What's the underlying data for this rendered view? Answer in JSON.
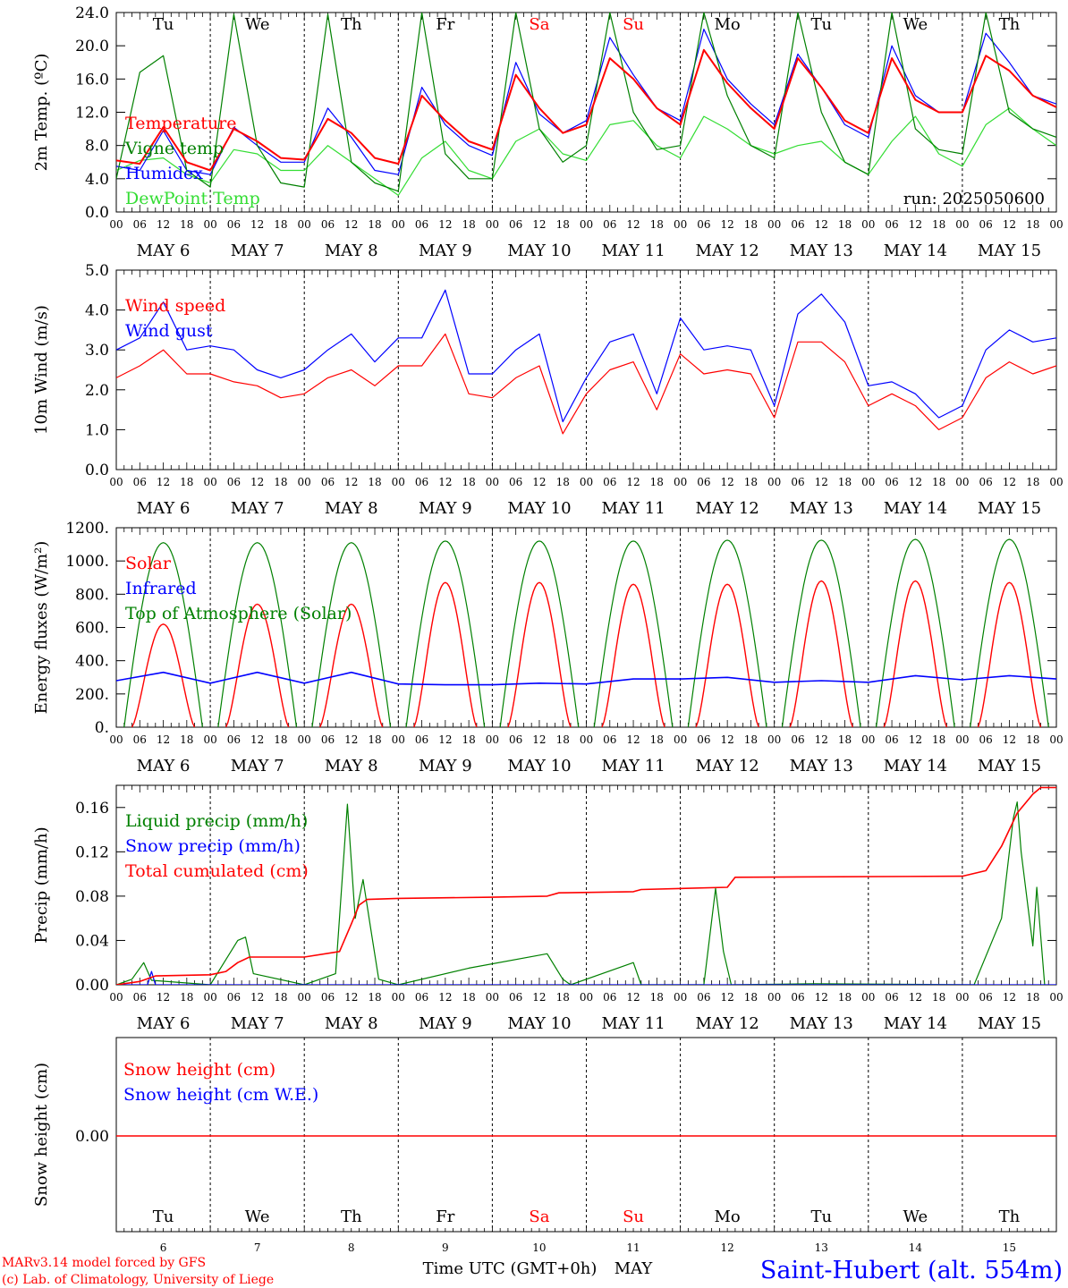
{
  "colors": {
    "red": "#ff0000",
    "green": "#008000",
    "blue": "#0000ff",
    "lightgreen": "#33dd33",
    "black": "#000000",
    "weekend": "#ff0000"
  },
  "days": [
    {
      "dow": "Tu",
      "date": "MAY  6",
      "num": "6",
      "weekend": false
    },
    {
      "dow": "We",
      "date": "MAY  7",
      "num": "7",
      "weekend": false
    },
    {
      "dow": "Th",
      "date": "MAY  8",
      "num": "8",
      "weekend": false
    },
    {
      "dow": "Fr",
      "date": "MAY  9",
      "num": "9",
      "weekend": false
    },
    {
      "dow": "Sa",
      "date": "MAY 10",
      "num": "10",
      "weekend": true
    },
    {
      "dow": "Su",
      "date": "MAY 11",
      "num": "11",
      "weekend": true
    },
    {
      "dow": "Mo",
      "date": "MAY 12",
      "num": "12",
      "weekend": false
    },
    {
      "dow": "Tu",
      "date": "MAY 13",
      "num": "13",
      "weekend": false
    },
    {
      "dow": "We",
      "date": "MAY 14",
      "num": "14",
      "weekend": false
    },
    {
      "dow": "Th",
      "date": "MAY 15",
      "num": "15",
      "weekend": false
    }
  ],
  "hour_ticks": [
    "00",
    "06",
    "12",
    "18"
  ],
  "end_tick": "00",
  "run_label": "run: 2025050600",
  "xlabel": "Time UTC (GMT+0h)",
  "month_label": "MAY",
  "credit": [
    "MARv3.14 model forced by GFS",
    "(c) Lab. of Climatology, University of Liege"
  ],
  "station": "Saint-Hubert (alt. 554m)",
  "chart_data": [
    {
      "id": "temp",
      "type": "line",
      "ylabel": "2m Temp. (ºC)",
      "ylim": [
        0,
        24
      ],
      "yticks": [
        "0.0",
        "4.0",
        "8.0",
        "12.0",
        "16.0",
        "20.0",
        "24.0"
      ],
      "show_dow": true,
      "x": [
        0,
        6,
        12,
        18,
        24,
        30,
        36,
        42,
        48,
        54,
        60,
        66,
        72,
        78,
        84,
        90,
        96,
        102,
        108,
        114,
        120,
        126,
        132,
        138,
        144,
        150,
        156,
        162,
        168,
        174,
        180,
        186,
        192,
        198,
        204,
        210,
        216,
        222,
        228,
        234,
        240
      ],
      "series": [
        {
          "name": "Temperature",
          "color": "red",
          "values": [
            6.2,
            5.8,
            10.2,
            6.0,
            5.0,
            10.0,
            8.5,
            6.5,
            6.3,
            11.2,
            9.5,
            6.5,
            5.8,
            14.0,
            11.0,
            8.5,
            7.5,
            16.5,
            12.5,
            9.5,
            10.5,
            18.5,
            16.0,
            12.5,
            10.5,
            19.5,
            15.5,
            12.5,
            10.0,
            18.5,
            15.0,
            11.0,
            9.5,
            18.5,
            13.5,
            12.0,
            12.0,
            18.8,
            17.0,
            14.0,
            12.6
          ]
        },
        {
          "name": "Vigne temp",
          "color": "green",
          "values": [
            4.0,
            16.8,
            18.8,
            5.0,
            3.0,
            23.8,
            8.0,
            3.5,
            3.0,
            23.8,
            6.0,
            3.5,
            2.5,
            24.0,
            7.0,
            4.0,
            4.0,
            24.0,
            10.0,
            6.0,
            8.0,
            24.0,
            12.0,
            7.5,
            8.0,
            24.0,
            14.0,
            8.0,
            6.5,
            24.0,
            12.0,
            6.0,
            4.5,
            24.0,
            10.0,
            7.5,
            7.0,
            24.0,
            12.0,
            10.0,
            9.0
          ]
        },
        {
          "name": "Humidex",
          "color": "blue",
          "values": [
            5.5,
            5.0,
            9.8,
            5.0,
            4.5,
            10.2,
            8.0,
            6.0,
            6.0,
            12.5,
            9.0,
            5.0,
            4.5,
            15.0,
            10.5,
            8.0,
            6.8,
            18.0,
            11.8,
            9.5,
            11.0,
            21.0,
            16.5,
            12.5,
            11.0,
            22.0,
            16.0,
            13.0,
            10.5,
            19.0,
            15.0,
            10.5,
            9.0,
            20.0,
            14.0,
            12.0,
            12.0,
            21.5,
            18.0,
            14.0,
            13.0
          ]
        },
        {
          "name": "DewPoint Temp",
          "color": "lightgreen",
          "values": [
            5.0,
            6.2,
            6.5,
            4.5,
            3.5,
            7.5,
            7.0,
            5.0,
            5.0,
            8.0,
            6.0,
            4.0,
            2.0,
            6.5,
            8.5,
            5.0,
            4.0,
            8.5,
            10.0,
            7.0,
            6.2,
            10.5,
            11.0,
            8.0,
            6.5,
            11.5,
            10.0,
            8.0,
            7.0,
            8.0,
            8.5,
            6.0,
            4.5,
            8.5,
            11.5,
            7.0,
            5.5,
            10.5,
            12.5,
            10.0,
            8.0
          ]
        }
      ]
    },
    {
      "id": "wind",
      "type": "line",
      "ylabel": "10m Wind (m/s)",
      "ylim": [
        0,
        5
      ],
      "yticks": [
        "0.0",
        "1.0",
        "2.0",
        "3.0",
        "4.0",
        "5.0"
      ],
      "x": [
        0,
        6,
        12,
        18,
        24,
        30,
        36,
        42,
        48,
        54,
        60,
        66,
        72,
        78,
        84,
        90,
        96,
        102,
        108,
        114,
        120,
        126,
        132,
        138,
        144,
        150,
        156,
        162,
        168,
        174,
        180,
        186,
        192,
        198,
        204,
        210,
        216,
        222,
        228,
        234,
        240
      ],
      "series": [
        {
          "name": "Wind speed",
          "color": "red",
          "values": [
            2.3,
            2.6,
            3.0,
            2.4,
            2.4,
            2.2,
            2.1,
            1.8,
            1.9,
            2.3,
            2.5,
            2.1,
            2.6,
            2.6,
            3.4,
            1.9,
            1.8,
            2.3,
            2.6,
            0.9,
            1.9,
            2.5,
            2.7,
            1.5,
            2.9,
            2.4,
            2.5,
            2.4,
            1.3,
            3.2,
            3.2,
            2.7,
            1.6,
            1.9,
            1.6,
            1.0,
            1.3,
            2.3,
            2.7,
            2.4,
            2.6
          ]
        },
        {
          "name": "Wind gust",
          "color": "blue",
          "values": [
            3.0,
            3.3,
            4.2,
            3.0,
            3.1,
            3.0,
            2.5,
            2.3,
            2.5,
            3.0,
            3.4,
            2.7,
            3.3,
            3.3,
            4.5,
            2.4,
            2.4,
            3.0,
            3.4,
            1.2,
            2.3,
            3.2,
            3.4,
            1.9,
            3.8,
            3.0,
            3.1,
            3.0,
            1.6,
            3.9,
            4.4,
            3.7,
            2.1,
            2.2,
            1.9,
            1.3,
            1.6,
            3.0,
            3.5,
            3.2,
            3.3
          ]
        }
      ]
    },
    {
      "id": "energy",
      "type": "line",
      "ylabel": "Energy fluxes (W/m²)",
      "ylim": [
        0,
        1200
      ],
      "yticks": [
        "0.",
        "200.",
        "400.",
        "600.",
        "800.",
        "1000.",
        "1200."
      ],
      "series": [
        {
          "name": "Solar",
          "color": "red",
          "daily_peak": [
            620,
            740,
            740,
            870,
            870,
            860,
            860,
            880,
            880,
            870
          ]
        },
        {
          "name": "Infrared",
          "color": "blue",
          "x": [
            0,
            12,
            24,
            36,
            48,
            60,
            72,
            84,
            96,
            108,
            120,
            132,
            144,
            156,
            168,
            180,
            192,
            204,
            216,
            228,
            240
          ],
          "values": [
            280,
            330,
            265,
            330,
            265,
            330,
            260,
            255,
            255,
            265,
            260,
            290,
            290,
            300,
            270,
            280,
            270,
            310,
            285,
            310,
            290
          ]
        },
        {
          "name": "Top of Atmosphere (Solar)",
          "color": "green",
          "daily_peak": [
            1110,
            1110,
            1110,
            1120,
            1120,
            1120,
            1125,
            1125,
            1130,
            1130
          ]
        }
      ]
    },
    {
      "id": "precip",
      "type": "line",
      "ylabel": "Precip (mm/h)",
      "ylim": [
        0,
        0.18
      ],
      "yticks": [
        "0.00",
        "0.04",
        "0.08",
        "0.12",
        "0.16"
      ],
      "series": [
        {
          "name": "Liquid precip (mm/h)",
          "color": "green",
          "x": [
            0,
            4,
            7,
            9,
            24,
            31,
            33,
            35,
            48,
            56,
            59,
            61,
            63,
            65,
            67,
            72,
            90,
            110,
            114,
            116,
            132,
            134,
            150,
            153,
            155,
            157,
            178,
            219,
            226,
            229,
            230,
            231,
            234,
            235,
            237
          ],
          "values": [
            0,
            0.005,
            0.02,
            0.004,
            0,
            0.04,
            0.043,
            0.01,
            0,
            0.01,
            0.163,
            0.06,
            0.095,
            0.05,
            0.005,
            0,
            0.015,
            0.028,
            0.005,
            0,
            0.02,
            0,
            0,
            0.087,
            0.03,
            0,
            0.001,
            0,
            0.06,
            0.15,
            0.165,
            0.12,
            0.035,
            0.088,
            0
          ]
        },
        {
          "name": "Snow precip (mm/h)",
          "color": "blue",
          "x": [
            0,
            8,
            9,
            10,
            240
          ],
          "values": [
            0,
            0,
            0.012,
            0,
            0
          ]
        },
        {
          "name": "Total cumulated (cm)",
          "color": "red",
          "x": [
            0,
            6,
            10,
            24,
            28,
            31,
            34,
            48,
            57,
            60,
            62,
            64,
            72,
            96,
            110,
            113,
            132,
            134,
            156,
            158,
            216,
            222,
            226,
            230,
            234,
            236,
            240
          ],
          "values": [
            0,
            0.003,
            0.008,
            0.009,
            0.012,
            0.02,
            0.025,
            0.025,
            0.03,
            0.055,
            0.072,
            0.077,
            0.078,
            0.079,
            0.08,
            0.083,
            0.084,
            0.086,
            0.088,
            0.097,
            0.098,
            0.103,
            0.125,
            0.155,
            0.172,
            0.178,
            0.178
          ]
        }
      ]
    },
    {
      "id": "snow",
      "type": "line",
      "ylabel": "Snow height (cm)",
      "yticks": [
        "0.00"
      ],
      "series": [
        {
          "name": "Snow height (cm)",
          "color": "red",
          "values": [
            0
          ]
        },
        {
          "name": "Snow height (cm W.E.)",
          "color": "blue",
          "values": [
            0
          ]
        }
      ]
    }
  ]
}
